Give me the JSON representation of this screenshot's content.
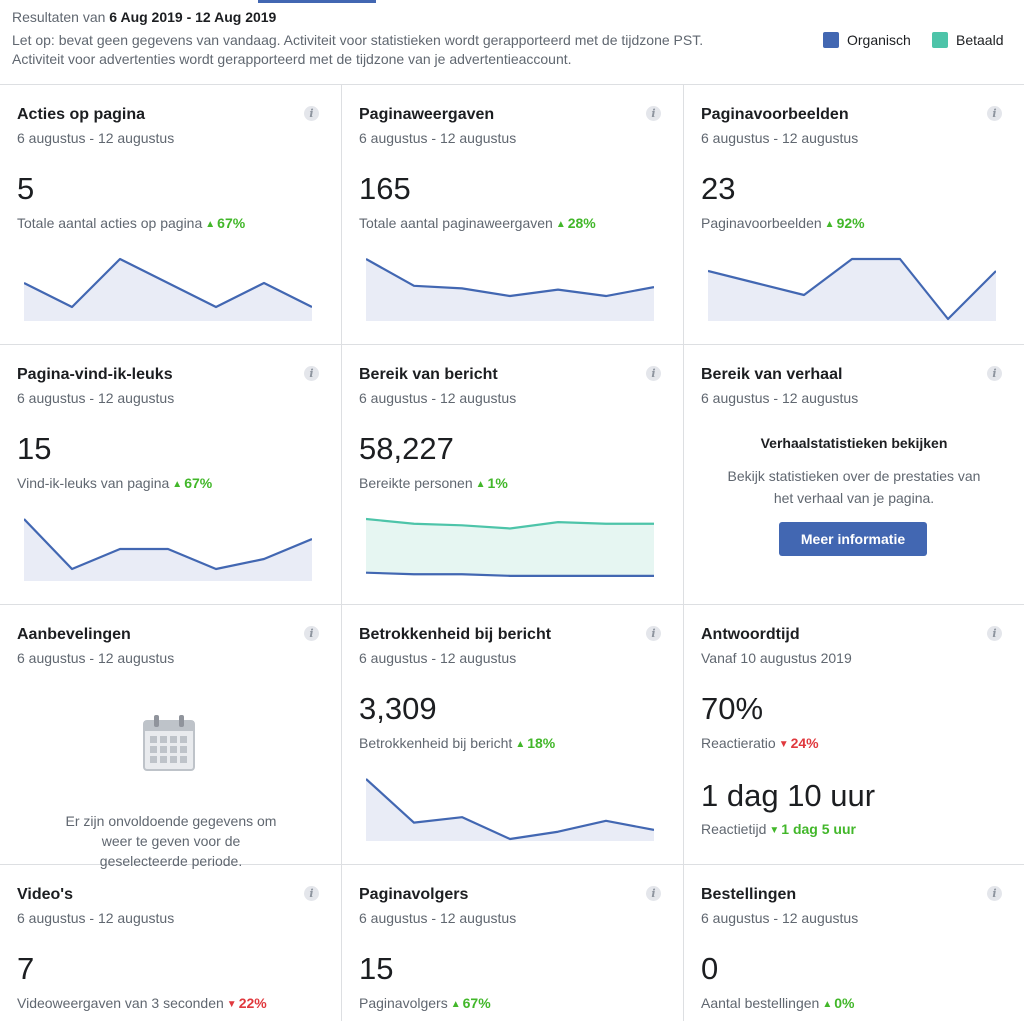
{
  "header": {
    "range_prefix": "Resultaten van",
    "range_value": "6 Aug 2019 - 12 Aug 2019",
    "note_line1": "Let op: bevat geen gegevens van vandaag. Activiteit voor statistieken wordt gerapporteerd met de tijdzone PST.",
    "note_line2": "Activiteit voor advertenties wordt gerapporteerd met de tijdzone van je advertentieaccount.",
    "legend_organic": "Organisch",
    "legend_paid": "Betaald",
    "colors": {
      "organic": "#4267b2",
      "paid": "#4dc4a9"
    }
  },
  "info_glyph": "i",
  "cards": {
    "acties": {
      "title": "Acties op pagina",
      "sub": "6 augustus - 12 augustus",
      "value": "5",
      "desc": "Totale aantal acties op pagina",
      "change": "67%",
      "trend": "up",
      "series": [
        3,
        1,
        5,
        3,
        1,
        3,
        1
      ]
    },
    "weergaven": {
      "title": "Paginaweergaven",
      "sub": "6 augustus - 12 augustus",
      "value": "165",
      "desc": "Totale aantal paginaweergaven",
      "change": "28%",
      "trend": "up",
      "series": [
        47,
        26,
        24,
        18,
        23,
        18,
        25
      ]
    },
    "voorbeelden": {
      "title": "Paginavoorbeelden",
      "sub": "6 augustus - 12 augustus",
      "value": "23",
      "desc": "Paginavoorbeelden",
      "change": "92%",
      "trend": "up",
      "series": [
        4,
        3,
        2,
        5,
        5,
        0,
        4
      ]
    },
    "likes": {
      "title": "Pagina-vind-ik-leuks",
      "sub": "6 augustus - 12 augustus",
      "value": "15",
      "desc": "Vind-ik-leuks van pagina",
      "change": "67%",
      "trend": "up",
      "series": [
        6,
        1,
        3,
        3,
        1,
        2,
        4
      ]
    },
    "bereik": {
      "title": "Bereik van bericht",
      "sub": "6 augustus - 12 augustus",
      "value": "58,227",
      "desc": "Bereikte personen",
      "change": "1%",
      "trend": "up",
      "series": [
        4,
        3,
        3,
        2,
        2,
        2,
        2
      ],
      "series_paid": [
        38,
        35,
        34,
        32,
        36,
        35,
        35
      ]
    },
    "verhaal": {
      "title": "Bereik van verhaal",
      "sub": "6 augustus - 12 augustus",
      "heading": "Verhaalstatistieken bekijken",
      "body": "Bekijk statistieken over de prestaties van het verhaal van je pagina.",
      "button": "Meer informatie"
    },
    "aanbevelingen": {
      "title": "Aanbevelingen",
      "sub": "6 augustus - 12 augustus",
      "empty_text": "Er zijn onvoldoende gegevens om weer te geven voor de geselecteerde periode."
    },
    "betrokkenheid": {
      "title": "Betrokkenheid bij bericht",
      "sub": "6 augustus - 12 augustus",
      "value": "3,309",
      "desc": "Betrokkenheid bij bericht",
      "change": "18%",
      "trend": "up",
      "series": [
        33,
        9,
        12,
        0,
        4,
        10,
        5
      ]
    },
    "antwoord": {
      "title": "Antwoordtijd",
      "sub": "Vanaf 10 augustus 2019",
      "value": "70%",
      "desc": "Reactieratio",
      "change": "24%",
      "trend": "down",
      "value2": "1 dag 10 uur",
      "desc2": "Reactietijd",
      "change2": "1 dag 5 uur",
      "trend2": "down"
    },
    "videos": {
      "title": "Video's",
      "sub": "6 augustus - 12 augustus",
      "value": "7",
      "desc": "Videoweergaven van 3 seconden",
      "change": "22%",
      "trend": "down"
    },
    "volgers": {
      "title": "Paginavolgers",
      "sub": "6 augustus - 12 augustus",
      "value": "15",
      "desc": "Paginavolgers",
      "change": "67%",
      "trend": "up"
    },
    "bestellingen": {
      "title": "Bestellingen",
      "sub": "6 augustus - 12 augustus",
      "value": "0",
      "desc": "Aantal bestellingen",
      "change": "0%",
      "trend": "up"
    }
  }
}
